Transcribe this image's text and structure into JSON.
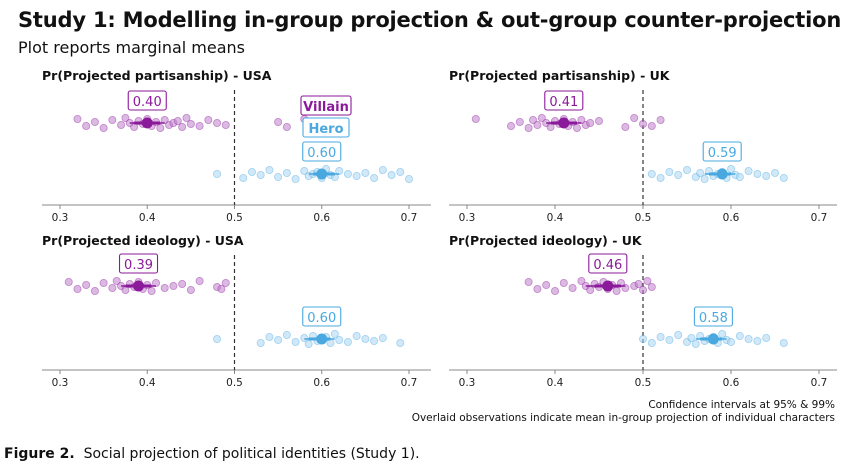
{
  "title": "Study 1: Modelling in-group projection & out-group counter-projection",
  "subtitle": "Plot reports marginal means",
  "notes": {
    "line1": "Confidence intervals at 95% & 99%",
    "line2": "Overlaid observations indicate mean in-group projection of individual characters"
  },
  "caption": {
    "label": "Figure 2.",
    "text": "Social projection of political identities (Study 1)."
  },
  "colors": {
    "villain": "#8b1a9a",
    "hero": "#4aa8e0",
    "axis": "#888888",
    "dashed": "#333333"
  },
  "legend": {
    "villain": "Villain",
    "hero": "Hero"
  },
  "chart_data": [
    {
      "type": "scatter",
      "title": "Pr(Projected partisanship) - USA",
      "xlim": [
        0.27,
        0.72
      ],
      "ticks": [
        "0.3",
        "0.4",
        "0.5",
        "0.6",
        "0.7"
      ],
      "reference_line": 0.5,
      "series": [
        {
          "name": "Villain",
          "mean": 0.4,
          "label": "0.40",
          "ci95": [
            0.385,
            0.415
          ],
          "ci99": [
            0.38,
            0.42
          ],
          "points": [
            0.32,
            0.33,
            0.34,
            0.35,
            0.36,
            0.37,
            0.375,
            0.38,
            0.385,
            0.39,
            0.395,
            0.4,
            0.405,
            0.41,
            0.415,
            0.42,
            0.425,
            0.43,
            0.435,
            0.44,
            0.445,
            0.45,
            0.46,
            0.47,
            0.48,
            0.49,
            0.55,
            0.56,
            0.58,
            0.59
          ]
        },
        {
          "name": "Hero",
          "mean": 0.6,
          "label": "0.60",
          "ci95": [
            0.59,
            0.615
          ],
          "ci99": [
            0.585,
            0.62
          ],
          "points": [
            0.48,
            0.51,
            0.52,
            0.53,
            0.54,
            0.55,
            0.56,
            0.57,
            0.58,
            0.585,
            0.59,
            0.595,
            0.6,
            0.605,
            0.61,
            0.615,
            0.62,
            0.63,
            0.64,
            0.65,
            0.66,
            0.67,
            0.68,
            0.69,
            0.7
          ]
        }
      ]
    },
    {
      "type": "scatter",
      "title": "Pr(Projected partisanship) - UK",
      "xlim": [
        0.27,
        0.72
      ],
      "ticks": [
        "0.3",
        "0.4",
        "0.5",
        "0.6",
        "0.7"
      ],
      "reference_line": 0.5,
      "series": [
        {
          "name": "Villain",
          "mean": 0.41,
          "label": "0.41",
          "ci95": [
            0.395,
            0.425
          ],
          "ci99": [
            0.39,
            0.43
          ],
          "points": [
            0.31,
            0.35,
            0.36,
            0.37,
            0.375,
            0.38,
            0.385,
            0.39,
            0.395,
            0.4,
            0.405,
            0.41,
            0.415,
            0.42,
            0.425,
            0.43,
            0.435,
            0.44,
            0.45,
            0.48,
            0.49,
            0.5,
            0.51,
            0.52
          ]
        },
        {
          "name": "Hero",
          "mean": 0.59,
          "label": "0.59",
          "ci95": [
            0.575,
            0.6
          ],
          "ci99": [
            0.57,
            0.605
          ],
          "points": [
            0.51,
            0.52,
            0.53,
            0.54,
            0.55,
            0.56,
            0.565,
            0.57,
            0.575,
            0.58,
            0.585,
            0.59,
            0.595,
            0.6,
            0.605,
            0.61,
            0.62,
            0.63,
            0.64,
            0.65,
            0.66
          ]
        }
      ]
    },
    {
      "type": "scatter",
      "title": "Pr(Projected ideology) - USA",
      "xlim": [
        0.27,
        0.72
      ],
      "ticks": [
        "0.3",
        "0.4",
        "0.5",
        "0.6",
        "0.7"
      ],
      "reference_line": 0.5,
      "series": [
        {
          "name": "Villain",
          "mean": 0.39,
          "label": "0.39",
          "ci95": [
            0.375,
            0.405
          ],
          "ci99": [
            0.37,
            0.41
          ],
          "points": [
            0.31,
            0.32,
            0.33,
            0.34,
            0.35,
            0.36,
            0.365,
            0.37,
            0.375,
            0.38,
            0.385,
            0.39,
            0.395,
            0.4,
            0.405,
            0.41,
            0.42,
            0.43,
            0.44,
            0.45,
            0.46,
            0.48,
            0.485,
            0.49
          ]
        },
        {
          "name": "Hero",
          "mean": 0.6,
          "label": "0.60",
          "ci95": [
            0.585,
            0.61
          ],
          "ci99": [
            0.58,
            0.615
          ],
          "points": [
            0.48,
            0.53,
            0.54,
            0.55,
            0.56,
            0.57,
            0.58,
            0.585,
            0.59,
            0.595,
            0.6,
            0.605,
            0.61,
            0.615,
            0.62,
            0.63,
            0.64,
            0.65,
            0.66,
            0.67,
            0.69
          ]
        }
      ]
    },
    {
      "type": "scatter",
      "title": "Pr(Projected ideology) - UK",
      "xlim": [
        0.27,
        0.72
      ],
      "ticks": [
        "0.3",
        "0.4",
        "0.5",
        "0.6",
        "0.7"
      ],
      "reference_line": 0.5,
      "series": [
        {
          "name": "Villain",
          "mean": 0.46,
          "label": "0.46",
          "ci95": [
            0.445,
            0.475
          ],
          "ci99": [
            0.435,
            0.48
          ],
          "points": [
            0.37,
            0.38,
            0.39,
            0.4,
            0.41,
            0.42,
            0.43,
            0.435,
            0.44,
            0.445,
            0.45,
            0.455,
            0.46,
            0.465,
            0.47,
            0.475,
            0.48,
            0.49,
            0.495,
            0.5,
            0.505,
            0.51
          ]
        },
        {
          "name": "Hero",
          "mean": 0.58,
          "label": "0.58",
          "ci95": [
            0.565,
            0.59
          ],
          "ci99": [
            0.56,
            0.595
          ],
          "points": [
            0.5,
            0.51,
            0.52,
            0.53,
            0.54,
            0.55,
            0.555,
            0.56,
            0.565,
            0.57,
            0.575,
            0.58,
            0.585,
            0.59,
            0.595,
            0.6,
            0.61,
            0.62,
            0.63,
            0.64,
            0.66
          ]
        }
      ]
    }
  ]
}
